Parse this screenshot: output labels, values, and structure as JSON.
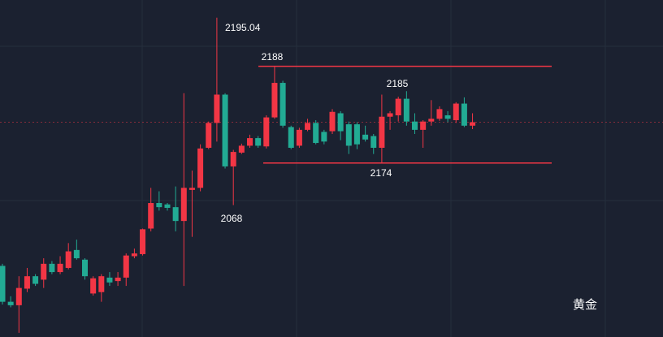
{
  "chart_data": {
    "type": "candlestick",
    "up_color": "#f23645",
    "down_color": "#22ab94",
    "ylim": [
      2148.8,
      2197.6
    ],
    "open": [
      2159.1,
      2153.9,
      2153.4,
      2155.8,
      2157.6,
      2157.1,
      2159.4,
      2158.2,
      2158.8,
      2161.4,
      2160.0,
      2155.1,
      2155.3,
      2157.4,
      2156.9,
      2157.4,
      2160.5,
      2160.8,
      2164.5,
      2168.2,
      2168.0,
      2167.6,
      2165.6,
      2170.1,
      2170.4,
      2176.2,
      2179.8,
      2183.9,
      2173.5,
      2175.5,
      2176.5,
      2177.6,
      2176.4,
      2180.6,
      2185.6,
      2179.2,
      2176.5,
      2178.8,
      2179.8,
      2178.5,
      2178.6,
      2181.2,
      2179.6,
      2179.6,
      2178.1,
      2177.9,
      2176.2,
      2180.7,
      2180.9,
      2183.3,
      2180.0,
      2178.8,
      2180.0,
      2180.4,
      2180.9,
      2180.2,
      2182.6,
      2179.4
    ],
    "high": [
      2159.4,
      2154.7,
      2157.6,
      2158.8,
      2157.9,
      2160.2,
      2159.8,
      2160.5,
      2162.4,
      2162.9,
      2160.2,
      2157.6,
      2157.9,
      2158.2,
      2158.2,
      2160.9,
      2161.6,
      2164.5,
      2170.4,
      2169.9,
      2168.2,
      2170.6,
      2184.1,
      2172.9,
      2176.7,
      2180.0,
      2195.04,
      2184.1,
      2175.9,
      2176.8,
      2178.1,
      2177.9,
      2180.9,
      2188.0,
      2185.9,
      2179.4,
      2179.1,
      2180.4,
      2180.2,
      2178.8,
      2181.8,
      2181.5,
      2180.0,
      2179.9,
      2179.4,
      2178.2,
      2183.9,
      2181.5,
      2183.6,
      2184.4,
      2181.2,
      2180.2,
      2183.1,
      2182.2,
      2181.5,
      2182.8,
      2183.5,
      2181.2
    ],
    "low": [
      2153.5,
      2153.1,
      2149.4,
      2155.3,
      2156.2,
      2155.9,
      2157.9,
      2157.9,
      2158.6,
      2160.0,
      2157.1,
      2154.8,
      2153.9,
      2156.2,
      2156.2,
      2156.2,
      2160.2,
      2160.6,
      2164.1,
      2167.1,
      2167.1,
      2164.1,
      2156.2,
      2163.3,
      2169.9,
      2176.0,
      2177.1,
      2173.2,
      2167.9,
      2175.3,
      2176.2,
      2176.2,
      2176.1,
      2180.4,
      2179.1,
      2176.0,
      2176.2,
      2178.6,
      2176.7,
      2176.7,
      2178.2,
      2177.3,
      2175.3,
      2176.0,
      2177.1,
      2175.3,
      2174.0,
      2178.8,
      2180.0,
      2179.4,
      2178.2,
      2176.2,
      2179.4,
      2180.1,
      2179.9,
      2179.8,
      2179.2,
      2178.9
    ],
    "close": [
      2153.9,
      2153.4,
      2155.9,
      2157.6,
      2156.5,
      2159.4,
      2158.2,
      2159.4,
      2161.2,
      2160.2,
      2157.6,
      2157.3,
      2157.6,
      2156.7,
      2157.4,
      2160.6,
      2160.9,
      2164.4,
      2168.2,
      2167.6,
      2167.5,
      2165.6,
      2170.4,
      2170.4,
      2176.1,
      2179.8,
      2183.9,
      2173.5,
      2175.6,
      2176.5,
      2177.6,
      2176.5,
      2180.6,
      2185.6,
      2179.4,
      2176.2,
      2178.8,
      2179.8,
      2176.9,
      2177.1,
      2181.4,
      2178.6,
      2176.5,
      2176.7,
      2177.4,
      2176.2,
      2180.7,
      2181.2,
      2183.3,
      2180.0,
      2178.8,
      2180.0,
      2180.4,
      2181.8,
      2180.4,
      2182.6,
      2179.4,
      2179.9
    ],
    "levels": [
      2188,
      2174
    ],
    "level_color": "#f23645",
    "annotations": [
      "2195.04",
      "2185",
      "2068"
    ],
    "label": "黄金"
  }
}
